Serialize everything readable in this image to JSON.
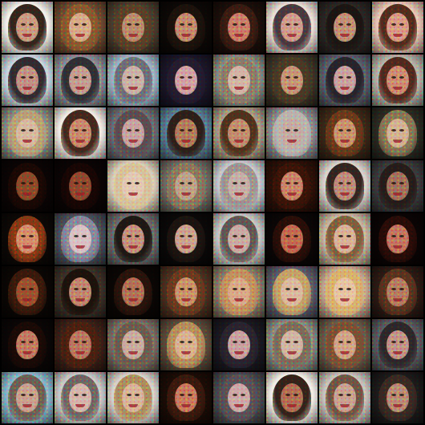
{
  "image": {
    "tiles": [
      {
        "bg": "#f2efea",
        "hair": "#2a1a12",
        "skin": "#c99a82"
      },
      {
        "bg": "#6b4a32",
        "hair": "#8a5a30",
        "skin": "#d6a98a"
      },
      {
        "bg": "#4a3d2e",
        "hair": "#5a4028",
        "skin": "#b98a6e"
      },
      {
        "bg": "#0c0806",
        "hair": "#1c120c",
        "skin": "#c28870"
      },
      {
        "bg": "#1a0e0a",
        "hair": "#3a1c12",
        "skin": "#c97c6a"
      },
      {
        "bg": "#e8dcd6",
        "hair": "#403038",
        "skin": "#cf9a8e"
      },
      {
        "bg": "#2a2624",
        "hair": "#1a1412",
        "skin": "#c08e78"
      },
      {
        "bg": "#e6c4b4",
        "hair": "#4a2416",
        "skin": "#d89888"
      },
      {
        "bg": "#c6d2dc",
        "hair": "#2a2228",
        "skin": "#c09086"
      },
      {
        "bg": "#8a8c96",
        "hair": "#2a2a30",
        "skin": "#c39c92"
      },
      {
        "bg": "#9cb2c4",
        "hair": "#6a6a76",
        "skin": "#c9b0a8"
      },
      {
        "bg": "#1a1628",
        "hair": "#241c30",
        "skin": "#d0a0a6"
      },
      {
        "bg": "#8a8a80",
        "hair": "#8a7a6a",
        "skin": "#d2b4a6"
      },
      {
        "bg": "#3c3428",
        "hair": "#4a3a26",
        "skin": "#c49478"
      },
      {
        "bg": "#5a5e6c",
        "hair": "#242028",
        "skin": "#c8a0a0"
      },
      {
        "bg": "#b4b2a8",
        "hair": "#4a2218",
        "skin": "#cc8a74"
      },
      {
        "bg": "#8a8a84",
        "hair": "#b8a07a",
        "skin": "#d6b8a0"
      },
      {
        "bg": "#f0eae4",
        "hair": "#3a1e14",
        "skin": "#c8886e"
      },
      {
        "bg": "#6a6c74",
        "hair": "#5a4a50",
        "skin": "#c6a2a2"
      },
      {
        "bg": "#5a7a92",
        "hair": "#2a1a14",
        "skin": "#b07a5e"
      },
      {
        "bg": "#a89a88",
        "hair": "#4a2c18",
        "skin": "#c08c70"
      },
      {
        "bg": "#8a8a90",
        "hair": "#bab4b0",
        "skin": "#c4aaa4"
      },
      {
        "bg": "#3a2818",
        "hair": "#6a3a1c",
        "skin": "#c8906e"
      },
      {
        "bg": "#2a2a22",
        "hair": "#8a7a5a",
        "skin": "#d2b094"
      },
      {
        "bg": "#0a0404",
        "hair": "#1a0804",
        "skin": "#8a4a2a"
      },
      {
        "bg": "#0a0404",
        "hair": "#180604",
        "skin": "#8e4830"
      },
      {
        "bg": "#d8ccb8",
        "hair": "#d6c09a",
        "skin": "#e2c8b4"
      },
      {
        "bg": "#6e6a62",
        "hair": "#8a7860",
        "skin": "#bca08a"
      },
      {
        "bg": "#c4c6cc",
        "hair": "#9a9090",
        "skin": "#c4aea8"
      },
      {
        "bg": "#2a1008",
        "hair": "#3a1408",
        "skin": "#c8826a"
      },
      {
        "bg": "#d8d2cc",
        "hair": "#2a1c18",
        "skin": "#bc8a7c"
      },
      {
        "bg": "#3a3a3c",
        "hair": "#241a18",
        "skin": "#a0705e"
      },
      {
        "bg": "#0c0806",
        "hair": "#8a3a16",
        "skin": "#d48c6c"
      },
      {
        "bg": "#4a4e5a",
        "hair": "#8a8aa0",
        "skin": "#d8c0c4"
      },
      {
        "bg": "#6a6a6c",
        "hair": "#1a1410",
        "skin": "#c49080"
      },
      {
        "bg": "#0a0808",
        "hair": "#1c1410",
        "skin": "#caa090"
      },
      {
        "bg": "#c4c4c2",
        "hair": "#5a5050",
        "skin": "#c8aaa4"
      },
      {
        "bg": "#0a0606",
        "hair": "#2a0e08",
        "skin": "#c06a52"
      },
      {
        "bg": "#c6b4a0",
        "hair": "#7a5a3a",
        "skin": "#d8b098"
      },
      {
        "bg": "#0a0404",
        "hair": "#2a0c08",
        "skin": "#c27462"
      },
      {
        "bg": "#0a0604",
        "hair": "#3a1a0c",
        "skin": "#9a5030"
      },
      {
        "bg": "#3a3028",
        "hair": "#1a100a",
        "skin": "#c08470"
      },
      {
        "bg": "#0a0604",
        "hair": "#2a140c",
        "skin": "#b07058"
      },
      {
        "bg": "#4a3020",
        "hair": "#6a3a20",
        "skin": "#c8906c"
      },
      {
        "bg": "#8a7a6a",
        "hair": "#c49060",
        "skin": "#d8a88a"
      },
      {
        "bg": "#5a5a6a",
        "hair": "#c8a46a",
        "skin": "#dab8a0"
      },
      {
        "bg": "#c4a890",
        "hair": "#d8b070",
        "skin": "#e6c2a4"
      },
      {
        "bg": "#2a1a14",
        "hair": "#5a3420",
        "skin": "#b47a62"
      },
      {
        "bg": "#0a0606",
        "hair": "#1a0a06",
        "skin": "#c07a62"
      },
      {
        "bg": "#3a2018",
        "hair": "#4a2010",
        "skin": "#b87662"
      },
      {
        "bg": "#7a6e66",
        "hair": "#6a5a4e",
        "skin": "#c8aaa0"
      },
      {
        "bg": "#5a4a3a",
        "hair": "#b89060",
        "skin": "#d8b092"
      },
      {
        "bg": "#1a1820",
        "hair": "#2a2430",
        "skin": "#c8a0a0"
      },
      {
        "bg": "#8a8a84",
        "hair": "#7a6a5a",
        "skin": "#d0b4a4"
      },
      {
        "bg": "#6a5a4a",
        "hair": "#7a5034",
        "skin": "#d0a288"
      },
      {
        "bg": "#5a5a60",
        "hair": "#2a2428",
        "skin": "#c0928a"
      },
      {
        "bg": "#8ab4c8",
        "hair": "#6a5a50",
        "skin": "#c8a090"
      },
      {
        "bg": "#c8c8c8",
        "hair": "#6a6060",
        "skin": "#d4b4ac"
      },
      {
        "bg": "#d6d0ca",
        "hair": "#a8885a",
        "skin": "#d8b29a"
      },
      {
        "bg": "#1a0c06",
        "hair": "#3a1a0e",
        "skin": "#c87860"
      },
      {
        "bg": "#4a4a50",
        "hair": "#5a5058",
        "skin": "#cca8a8"
      },
      {
        "bg": "#f0ece6",
        "hair": "#2a1810",
        "skin": "#b06e56"
      },
      {
        "bg": "#c8c2bc",
        "hair": "#6a4e40",
        "skin": "#c8a092"
      },
      {
        "bg": "#1c1a1a",
        "hair": "#3a2a24",
        "skin": "#b88a78"
      }
    ]
  }
}
